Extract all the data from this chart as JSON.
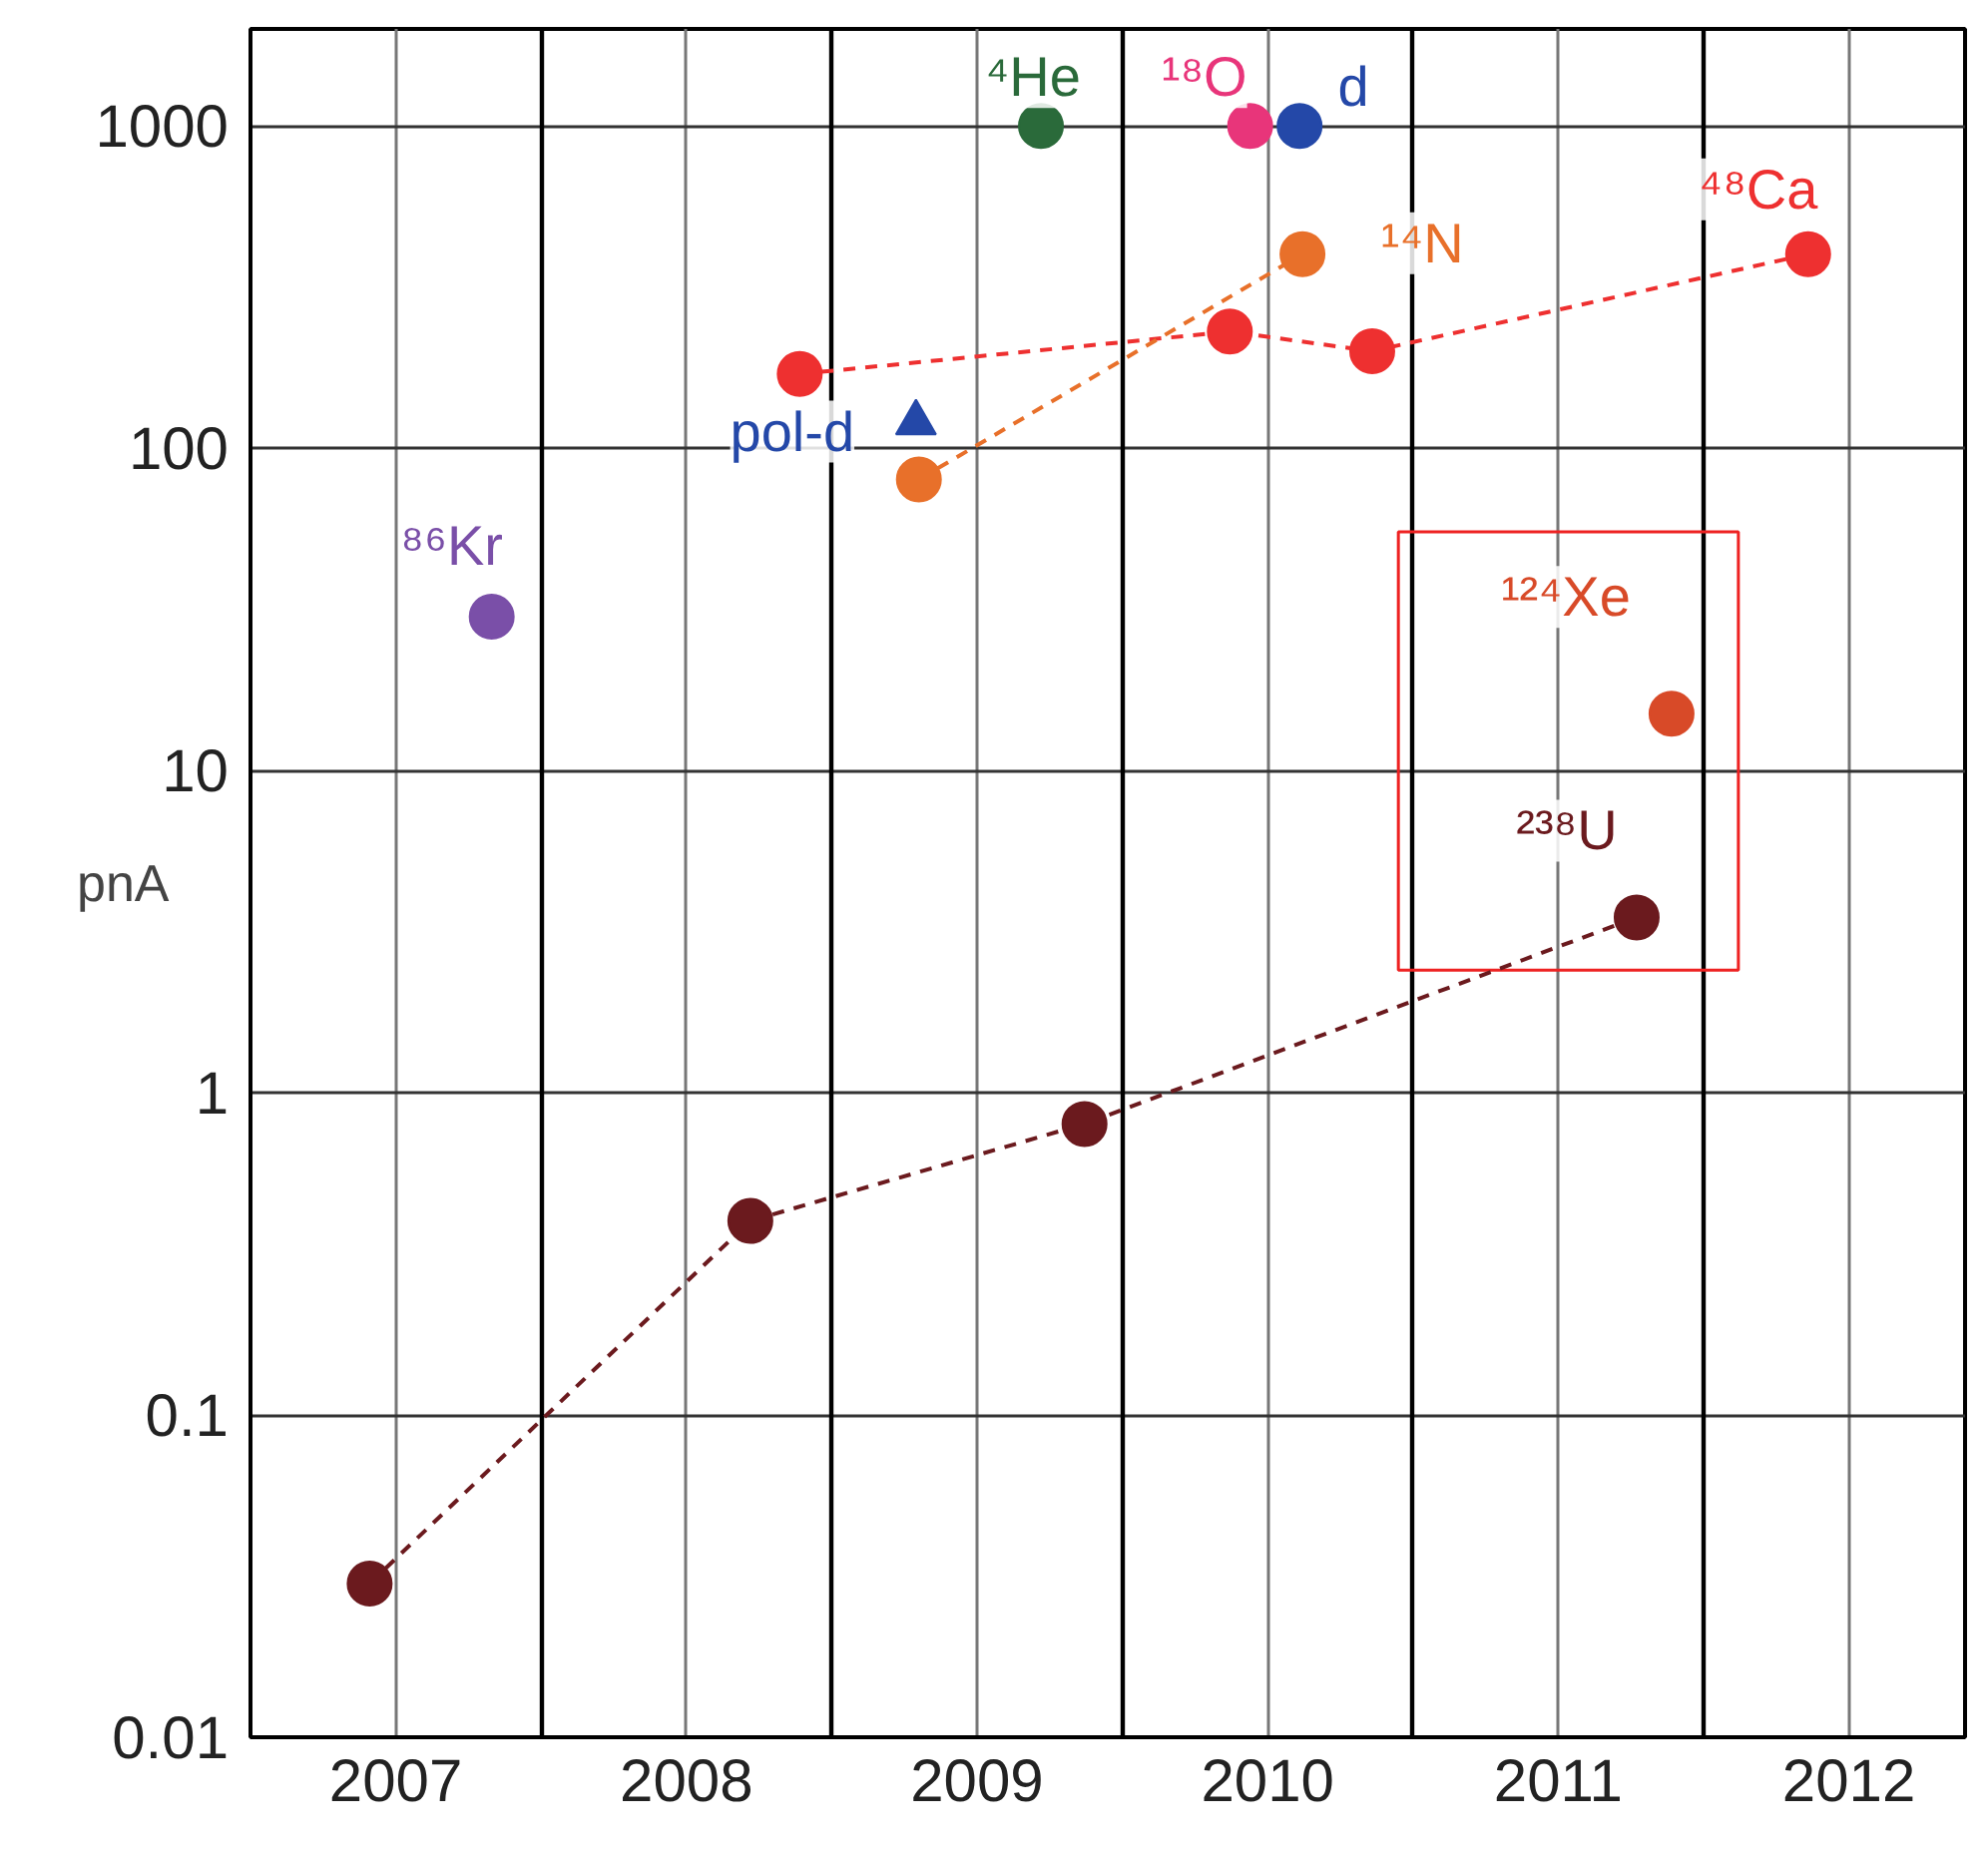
{
  "chart_data": {
    "type": "scatter",
    "ylabel": "pnA",
    "log": "y",
    "grid": true,
    "xlim": [
      2006.5,
      2012.4
    ],
    "xticks": [
      {
        "value": 2006.5,
        "label": null
      },
      2007,
      {
        "value": 2007.5,
        "label": null
      },
      2008,
      {
        "value": 2008.5,
        "label": null
      },
      2009,
      {
        "value": 2009.5,
        "label": null
      },
      2010,
      {
        "value": 2010.5,
        "label": null
      },
      2011,
      {
        "value": 2011.5,
        "label": null
      },
      2012
    ],
    "ylim": [
      0.01,
      2000
    ],
    "yticks": [
      0.01,
      0.1,
      1,
      10,
      100,
      1000
    ],
    "series": [
      {
        "name": "²³⁸U",
        "type": "line",
        "marker": "circle",
        "line_style": "dashed",
        "color": "#6b1a1e",
        "x": [
          2006.91,
          2008.22,
          2009.37,
          2011.27
        ],
        "values": [
          0.03,
          0.4,
          0.8,
          3.5
        ]
      },
      {
        "name": "⁴⁸Ca",
        "type": "line",
        "marker": "circle",
        "line_style": "dashed",
        "color": "#ee3030",
        "x": [
          2008.39,
          2009.87,
          2010.36,
          2011.86
        ],
        "values": [
          170,
          230,
          200,
          400
        ]
      },
      {
        "name": "¹⁴N",
        "type": "line",
        "marker": "circle",
        "line_style": "dashed",
        "color": "#e8702a",
        "x": [
          2008.8,
          2010.12
        ],
        "values": [
          80,
          400
        ]
      },
      {
        "name": "⁸⁶Kr",
        "marker": "circle",
        "color": "#7a4fa8",
        "x": [
          2007.33
        ],
        "values": [
          30
        ]
      },
      {
        "name": "⁴He",
        "marker": "circle",
        "color": "#2a6a3a",
        "x": [
          2009.22
        ],
        "values": [
          1000
        ]
      },
      {
        "name": "¹⁸O",
        "marker": "circle",
        "color": "#e8357a",
        "x": [
          2009.94
        ],
        "values": [
          1000
        ]
      },
      {
        "name": "d",
        "marker": "circle",
        "color": "#2448a8",
        "x": [
          2010.11
        ],
        "values": [
          1000
        ]
      },
      {
        "name": "pol-d",
        "marker": "triangle",
        "color": "#2448a8",
        "x": [
          2008.79
        ],
        "values": [
          120
        ]
      },
      {
        "name": "¹²⁴Xe",
        "marker": "circle",
        "color": "#d84a28",
        "x": [
          2011.39
        ],
        "values": [
          15
        ]
      }
    ]
  }
}
